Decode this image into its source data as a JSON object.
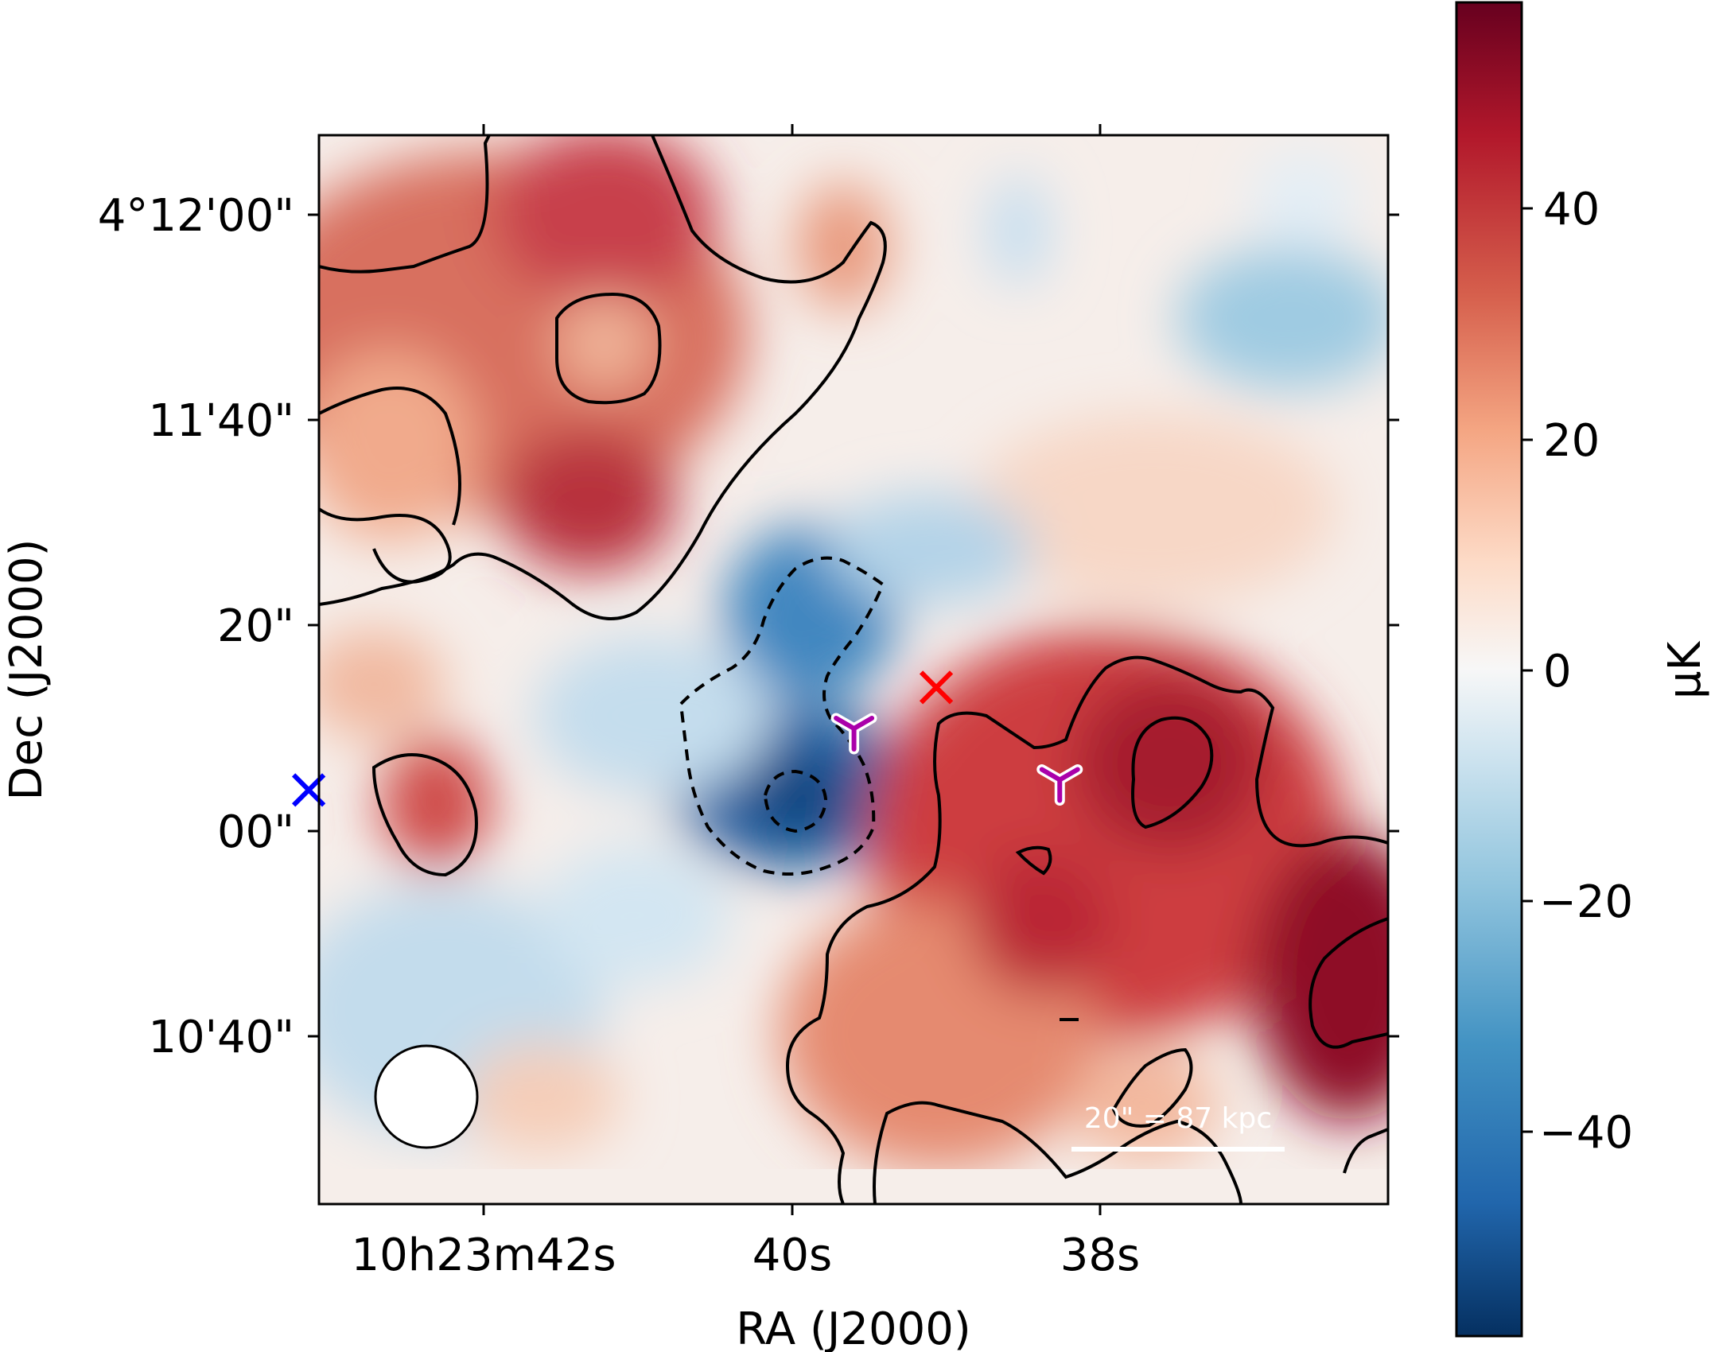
{
  "chart_data": {
    "type": "heatmap",
    "xlabel": "RA (J2000)",
    "ylabel": "Dec (J2000)",
    "x_ticks": [
      "10h23m42s",
      "40s",
      "38s"
    ],
    "y_ticks": [
      "4°12'00\"",
      "11'40\"",
      "20\"",
      "00\"",
      "10'40\""
    ],
    "colorbar": {
      "label": "μK",
      "ticks": [
        "40",
        "20",
        "0",
        "−20",
        "−40"
      ],
      "range": [
        -56,
        58
      ],
      "colormap": "RdBu_r"
    },
    "scalebar": {
      "label": "20\" = 87 kpc"
    },
    "markers": [
      {
        "symbol": "x",
        "color": "#0000ff",
        "ra_offset_arcsec": -47,
        "dec_offset_arcsec": 4
      },
      {
        "symbol": "x",
        "color": "#ff0000",
        "ra_offset_arcsec": 14,
        "dec_offset_arcsec": 14
      },
      {
        "symbol": "tri",
        "color": "#aa00aa",
        "ra_offset_arcsec": 6,
        "dec_offset_arcsec": 10
      },
      {
        "symbol": "tri",
        "color": "#aa00aa",
        "ra_offset_arcsec": 26,
        "dec_offset_arcsec": 5
      }
    ]
  }
}
